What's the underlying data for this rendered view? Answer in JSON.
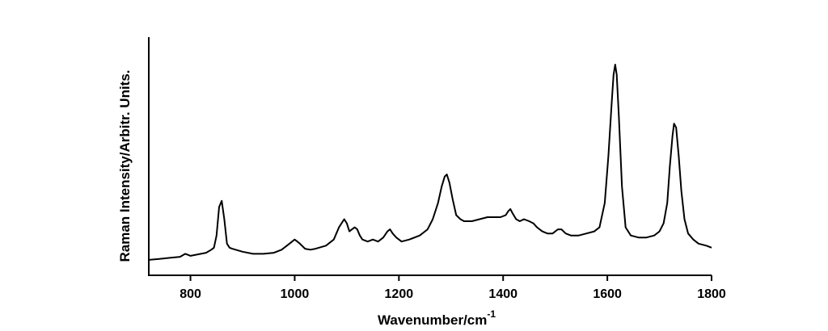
{
  "chart_data": {
    "type": "line",
    "title": "",
    "xlabel": "Wavenumber/cm",
    "xlabel_superscript": "-1",
    "ylabel": "Raman Intensity/Arbitr. Units.",
    "xlim": [
      720,
      1800
    ],
    "ylim": [
      0,
      1.0
    ],
    "y_tick_labels_shown": false,
    "grid": false,
    "legend": "none",
    "x_ticks": [
      800,
      1000,
      1200,
      1400,
      1600,
      1800
    ],
    "x_tick_labels": [
      "800",
      "1000",
      "1200",
      "1400",
      "1600",
      "1800"
    ],
    "series": [
      {
        "color": "#000000",
        "x": [
          720,
          740,
          760,
          780,
          790,
          795,
          800,
          810,
          820,
          830,
          840,
          845,
          850,
          855,
          860,
          865,
          870,
          875,
          880,
          900,
          920,
          940,
          960,
          975,
          990,
          1000,
          1005,
          1010,
          1020,
          1030,
          1040,
          1060,
          1075,
          1085,
          1095,
          1100,
          1105,
          1110,
          1115,
          1120,
          1125,
          1130,
          1140,
          1150,
          1160,
          1170,
          1178,
          1183,
          1188,
          1195,
          1205,
          1220,
          1240,
          1255,
          1265,
          1275,
          1282,
          1288,
          1292,
          1297,
          1303,
          1310,
          1318,
          1325,
          1340,
          1355,
          1370,
          1385,
          1395,
          1405,
          1410,
          1414,
          1418,
          1425,
          1432,
          1440,
          1450,
          1458,
          1465,
          1475,
          1485,
          1495,
          1505,
          1512,
          1520,
          1530,
          1545,
          1560,
          1575,
          1585,
          1595,
          1602,
          1608,
          1612,
          1615,
          1618,
          1622,
          1628,
          1635,
          1645,
          1660,
          1675,
          1690,
          1700,
          1708,
          1715,
          1720,
          1725,
          1728,
          1732,
          1737,
          1742,
          1748,
          1755,
          1765,
          1775,
          1790,
          1800
        ],
        "y": [
          0.04,
          0.045,
          0.05,
          0.055,
          0.07,
          0.065,
          0.06,
          0.065,
          0.07,
          0.075,
          0.09,
          0.1,
          0.16,
          0.3,
          0.33,
          0.24,
          0.12,
          0.1,
          0.095,
          0.08,
          0.07,
          0.07,
          0.075,
          0.09,
          0.12,
          0.14,
          0.13,
          0.12,
          0.095,
          0.09,
          0.095,
          0.11,
          0.14,
          0.2,
          0.24,
          0.22,
          0.18,
          0.19,
          0.2,
          0.19,
          0.16,
          0.14,
          0.13,
          0.14,
          0.13,
          0.15,
          0.18,
          0.19,
          0.17,
          0.15,
          0.13,
          0.14,
          0.16,
          0.19,
          0.24,
          0.32,
          0.4,
          0.45,
          0.46,
          0.42,
          0.34,
          0.26,
          0.24,
          0.23,
          0.23,
          0.24,
          0.25,
          0.25,
          0.25,
          0.26,
          0.28,
          0.29,
          0.27,
          0.24,
          0.23,
          0.24,
          0.23,
          0.22,
          0.2,
          0.18,
          0.17,
          0.17,
          0.19,
          0.19,
          0.17,
          0.16,
          0.16,
          0.17,
          0.18,
          0.2,
          0.32,
          0.55,
          0.8,
          0.95,
          1.0,
          0.95,
          0.75,
          0.4,
          0.2,
          0.16,
          0.15,
          0.15,
          0.16,
          0.18,
          0.22,
          0.32,
          0.5,
          0.65,
          0.71,
          0.69,
          0.55,
          0.38,
          0.24,
          0.17,
          0.14,
          0.12,
          0.11,
          0.1
        ]
      }
    ]
  }
}
